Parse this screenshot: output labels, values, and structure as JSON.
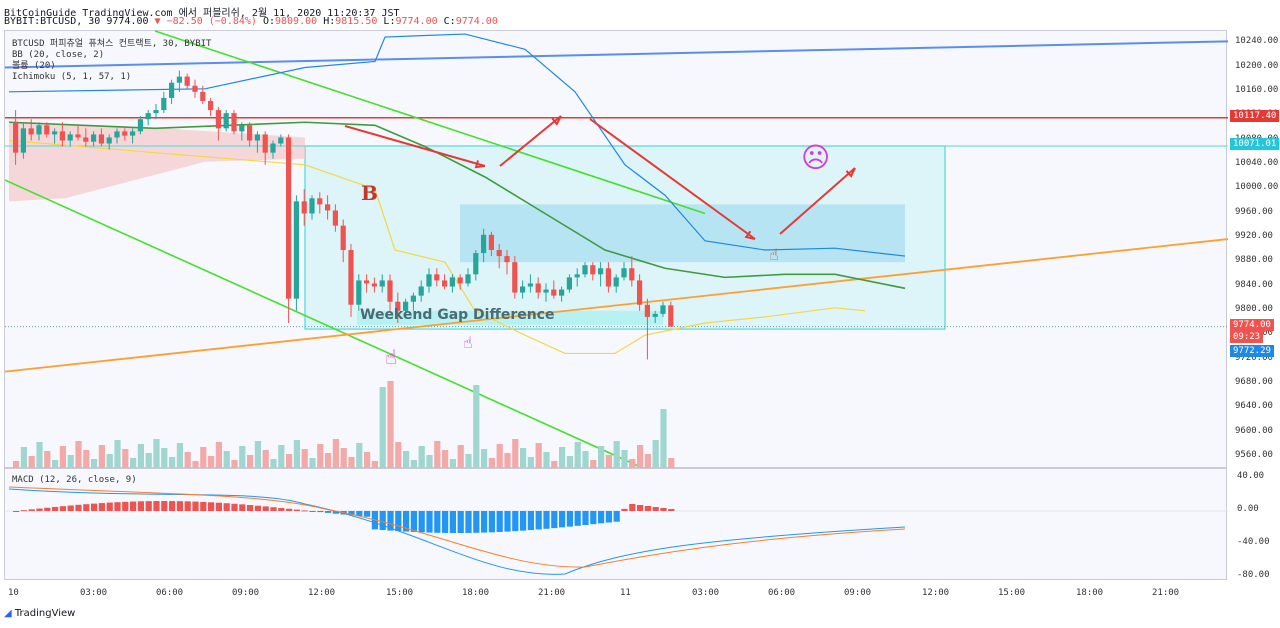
{
  "header": {
    "line1": "BitCoinGuide TradingView.com 에서 퍼블리쉬, 2월 11, 2020 11:20:37 JST",
    "symbol": "BYBIT:BTCUSD, 30",
    "last": "9774.00",
    "change": "−82.50 (−0.84%)",
    "ohlc_o_label": "O:",
    "ohlc_o": "9809.00",
    "ohlc_h_label": "H:",
    "ohlc_h": "9815.50",
    "ohlc_l_label": "L:",
    "ohlc_l": "9774.00",
    "ohlc_c_label": "C:",
    "ohlc_c": "9774.00"
  },
  "legend": {
    "title": "BTCUSD 퍼피츄얼 퓨쳐스 컨트랙트, 30, BYBIT",
    "bb": "BB (20, close, 2)",
    "volume": "볼륨 (20)",
    "ichimoku": "Ichimoku (5, 1, 57, 1)",
    "macd": "MACD (12, 26, close, 9)"
  },
  "annotations": {
    "gap_label": "Weekend Gap Difference",
    "b_label": "B",
    "sad_face": "☹",
    "hand": "☝"
  },
  "price_axis": [
    "10240.00",
    "10200.00",
    "10160.00",
    "10120.00",
    "10080.00",
    "10040.00",
    "10000.00",
    "9960.00",
    "9920.00",
    "9880.00",
    "9840.00",
    "9800.00",
    "9760.00",
    "9720.00",
    "9680.00",
    "9640.00",
    "9600.00",
    "9560.00"
  ],
  "macd_axis": [
    "40.00",
    "0.00",
    "-40.00",
    "-80.00"
  ],
  "price_tags": {
    "red_line": "10117.40",
    "cyan_line": "10071.01",
    "last": "9774.00",
    "countdown": "09:23",
    "bid": "9772.29"
  },
  "time_axis": [
    "10",
    "03:00",
    "06:00",
    "09:00",
    "12:00",
    "15:00",
    "18:00",
    "21:00",
    "11",
    "03:00",
    "06:00",
    "09:00",
    "12:00",
    "15:00",
    "18:00",
    "21:00"
  ],
  "footer": "TradingView",
  "colors": {
    "up": "#26a69a",
    "down": "#ef5350",
    "bb": "#1e88e5",
    "trend_blue": "#5b8def",
    "trend_green": "#44e02c",
    "trend_orange": "#ff9f2e",
    "hline_red": "#e53935",
    "hline_cyan": "#4dd8e0"
  },
  "chart_data": {
    "type": "candlestick",
    "ylim": [
      9540,
      10260
    ],
    "candles": [
      [
        10110,
        10130,
        10040,
        10060
      ],
      [
        10060,
        10110,
        10050,
        10100
      ],
      [
        10100,
        10115,
        10080,
        10090
      ],
      [
        10090,
        10110,
        10080,
        10105
      ],
      [
        10105,
        10110,
        10085,
        10090
      ],
      [
        10090,
        10100,
        10075,
        10095
      ],
      [
        10095,
        10110,
        10070,
        10080
      ],
      [
        10080,
        10095,
        10070,
        10090
      ],
      [
        10090,
        10105,
        10080,
        10085
      ],
      [
        10085,
        10100,
        10070,
        10078
      ],
      [
        10078,
        10095,
        10070,
        10090
      ],
      [
        10090,
        10100,
        10070,
        10075
      ],
      [
        10075,
        10090,
        10065,
        10085
      ],
      [
        10085,
        10100,
        10075,
        10095
      ],
      [
        10095,
        10100,
        10080,
        10088
      ],
      [
        10088,
        10100,
        10075,
        10095
      ],
      [
        10095,
        10120,
        10090,
        10115
      ],
      [
        10115,
        10130,
        10105,
        10125
      ],
      [
        10125,
        10140,
        10115,
        10130
      ],
      [
        10130,
        10160,
        10125,
        10150
      ],
      [
        10150,
        10180,
        10140,
        10175
      ],
      [
        10175,
        10195,
        10160,
        10185
      ],
      [
        10185,
        10190,
        10165,
        10170
      ],
      [
        10170,
        10180,
        10150,
        10160
      ],
      [
        10160,
        10170,
        10140,
        10145
      ],
      [
        10145,
        10150,
        10120,
        10130
      ],
      [
        10130,
        10135,
        10080,
        10100
      ],
      [
        10100,
        10130,
        10095,
        10125
      ],
      [
        10125,
        10130,
        10090,
        10095
      ],
      [
        10095,
        10110,
        10080,
        10105
      ],
      [
        10105,
        10110,
        10070,
        10080
      ],
      [
        10080,
        10095,
        10060,
        10090
      ],
      [
        10090,
        10095,
        10040,
        10060
      ],
      [
        10060,
        10080,
        10050,
        10075
      ],
      [
        10075,
        10090,
        10070,
        10085
      ],
      [
        10085,
        10090,
        9780,
        9820
      ],
      [
        9820,
        9990,
        9800,
        9980
      ],
      [
        9980,
        10000,
        9940,
        9960
      ],
      [
        9960,
        9990,
        9950,
        9985
      ],
      [
        9985,
        9995,
        9960,
        9975
      ],
      [
        9975,
        9990,
        9950,
        9965
      ],
      [
        9965,
        9975,
        9930,
        9940
      ],
      [
        9940,
        9950,
        9880,
        9900
      ],
      [
        9900,
        9910,
        9790,
        9810
      ],
      [
        9810,
        9860,
        9800,
        9850
      ],
      [
        9850,
        9860,
        9830,
        9845
      ],
      [
        9845,
        9855,
        9830,
        9840
      ],
      [
        9840,
        9860,
        9830,
        9850
      ],
      [
        9850,
        9860,
        9800,
        9815
      ],
      [
        9815,
        9830,
        9780,
        9800
      ],
      [
        9800,
        9820,
        9790,
        9815
      ],
      [
        9815,
        9830,
        9800,
        9825
      ],
      [
        9825,
        9850,
        9815,
        9840
      ],
      [
        9840,
        9870,
        9830,
        9860
      ],
      [
        9860,
        9870,
        9840,
        9850
      ],
      [
        9850,
        9860,
        9835,
        9840
      ],
      [
        9840,
        9860,
        9830,
        9855
      ],
      [
        9855,
        9860,
        9835,
        9845
      ],
      [
        9845,
        9870,
        9840,
        9860
      ],
      [
        9860,
        9900,
        9850,
        9895
      ],
      [
        9895,
        9935,
        9880,
        9925
      ],
      [
        9925,
        9930,
        9890,
        9900
      ],
      [
        9900,
        9910,
        9870,
        9890
      ],
      [
        9890,
        9900,
        9860,
        9880
      ],
      [
        9880,
        9890,
        9820,
        9830
      ],
      [
        9830,
        9850,
        9820,
        9840
      ],
      [
        9840,
        9860,
        9830,
        9845
      ],
      [
        9845,
        9855,
        9820,
        9830
      ],
      [
        9830,
        9845,
        9815,
        9835
      ],
      [
        9835,
        9850,
        9820,
        9825
      ],
      [
        9825,
        9840,
        9815,
        9835
      ],
      [
        9835,
        9860,
        9830,
        9855
      ],
      [
        9855,
        9870,
        9840,
        9860
      ],
      [
        9860,
        9880,
        9855,
        9875
      ],
      [
        9875,
        9880,
        9850,
        9860
      ],
      [
        9860,
        9880,
        9840,
        9870
      ],
      [
        9870,
        9880,
        9830,
        9840
      ],
      [
        9840,
        9860,
        9830,
        9855
      ],
      [
        9855,
        9880,
        9850,
        9870
      ],
      [
        9870,
        9890,
        9840,
        9850
      ],
      [
        9850,
        9860,
        9800,
        9810
      ],
      [
        9810,
        9820,
        9720,
        9790
      ],
      [
        9790,
        9800,
        9780,
        9795
      ],
      [
        9795,
        9815,
        9790,
        9809
      ],
      [
        9809,
        9815,
        9774,
        9774
      ]
    ]
  }
}
